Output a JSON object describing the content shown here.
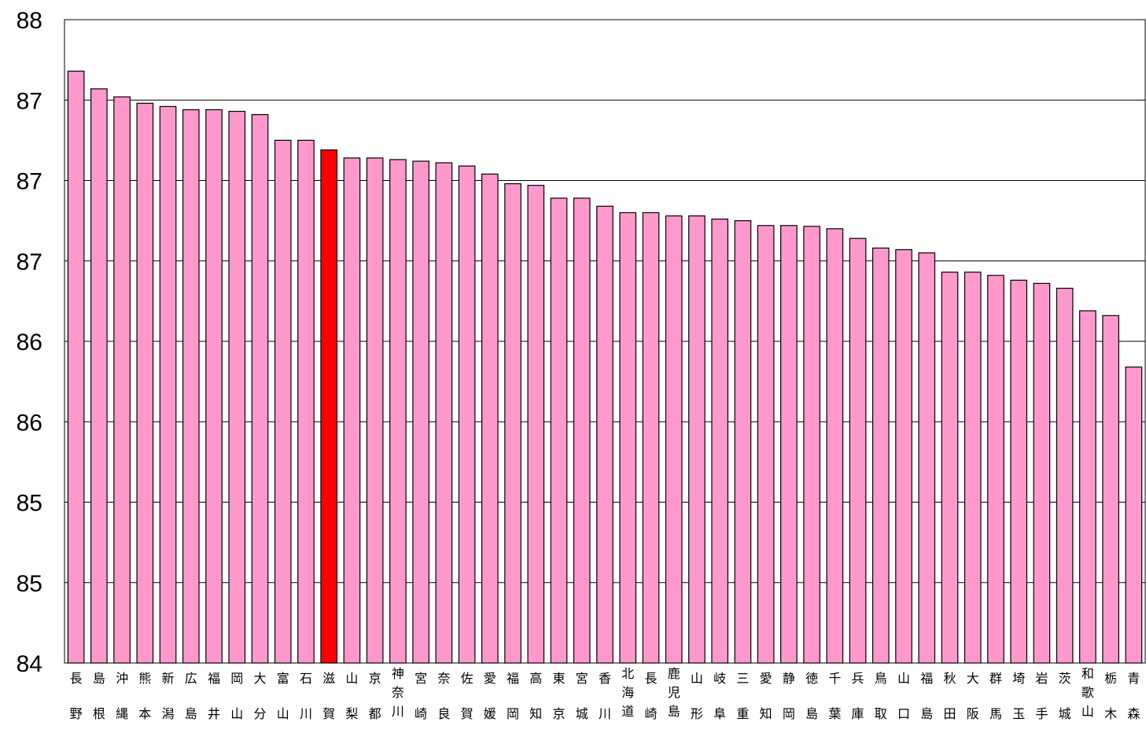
{
  "chart_data": {
    "type": "bar",
    "ylim": [
      84,
      88
    ],
    "y_tick_values": [
      84,
      84.5,
      85,
      85.5,
      86,
      86.5,
      87,
      87.5,
      88
    ],
    "y_tick_labels": [
      "84",
      "85",
      "85",
      "86",
      "86",
      "87",
      "87",
      "87",
      "88"
    ],
    "grid": true,
    "categories": [
      "長野",
      "島根",
      "沖縄",
      "熊本",
      "新潟",
      "広島",
      "福井",
      "岡山",
      "大分",
      "富山",
      "石川",
      "滋賀",
      "山梨",
      "京都",
      "神奈川",
      "宮崎",
      "奈良",
      "佐賀",
      "愛媛",
      "福岡",
      "高知",
      "東京",
      "宮城",
      "香川",
      "北海道",
      "長崎",
      "鹿児島",
      "山形",
      "岐阜",
      "三重",
      "愛知",
      "静岡",
      "徳島",
      "千葉",
      "兵庫",
      "鳥取",
      "山口",
      "福島",
      "秋田",
      "大阪",
      "群馬",
      "埼玉",
      "岩手",
      "茨城",
      "和歌山",
      "栃木",
      "青森"
    ],
    "category_labels": [
      "長 野",
      "島 根",
      "沖 縄",
      "熊 本",
      "新 潟",
      "広 島",
      "福 井",
      "岡 山",
      "大 分",
      "富 山",
      "石 川",
      "滋 賀",
      "山 梨",
      "京 都",
      "神奈川",
      "宮 崎",
      "奈 良",
      "佐 賀",
      "愛 媛",
      "福 岡",
      "高 知",
      "東 京",
      "宮 城",
      "香 川",
      "北海道",
      "長 崎",
      "鹿児島",
      "山 形",
      "岐 阜",
      "三 重",
      "愛 知",
      "静 岡",
      "徳 島",
      "千 葉",
      "兵 庫",
      "鳥 取",
      "山 口",
      "福 島",
      "秋 田",
      "大 阪",
      "群 馬",
      "埼 玉",
      "岩 手",
      "茨 城",
      "和歌山",
      "栃 木",
      "青 森"
    ],
    "values": [
      87.68,
      87.57,
      87.52,
      87.48,
      87.46,
      87.44,
      87.44,
      87.43,
      87.41,
      87.25,
      87.25,
      87.19,
      87.14,
      87.14,
      87.13,
      87.12,
      87.11,
      87.09,
      87.04,
      86.98,
      86.97,
      86.89,
      86.89,
      86.84,
      86.8,
      86.8,
      86.78,
      86.78,
      86.76,
      86.75,
      86.72,
      86.72,
      86.715,
      86.7,
      86.64,
      86.58,
      86.57,
      86.55,
      86.43,
      86.43,
      86.41,
      86.38,
      86.36,
      86.33,
      86.19,
      86.16,
      85.84
    ],
    "highlight_index": 11,
    "colors": {
      "bar": "#ff99cc",
      "highlight": "#ff0000",
      "grid": "#000000",
      "background": "#ffffff"
    }
  }
}
